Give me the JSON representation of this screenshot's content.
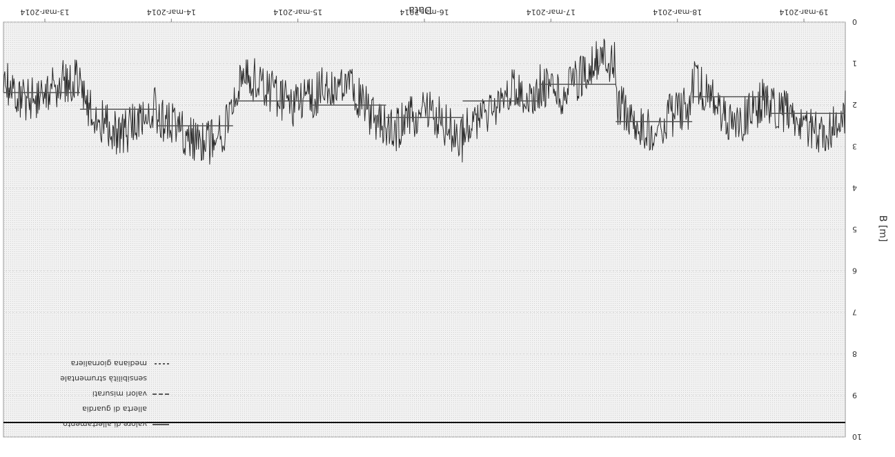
{
  "chart_data": {
    "type": "line",
    "orientation_note": "",
    "xlabel": "Data",
    "ylabel": "B [m]",
    "x_ticks": [
      "19-mar-2014",
      "18-mar-2014",
      "17-mar-2014",
      "16-mar-2014",
      "15-mar-2014",
      "14-mar-2014",
      "13-mar-2014"
    ],
    "y_ticks": [
      "0",
      "1",
      "2",
      "3",
      "4",
      "5",
      "6",
      "7",
      "8",
      "9",
      "10"
    ],
    "ylim": [
      0,
      10
    ],
    "grid": true,
    "legend_placement": "lower-left",
    "series": [
      {
        "name": "valore di allertamento",
        "style": "solid"
      },
      {
        "name": "allerta di guardia",
        "style": "none"
      },
      {
        "name": "valori misurati",
        "style": "dashed"
      },
      {
        "name": "sensibilità strumentale",
        "style": "none"
      },
      {
        "name": "mediana giornaliera",
        "style": "dash"
      }
    ],
    "alert_threshold": 9.65,
    "signal_mean_levels": [
      2.2,
      1.8,
      2.4,
      1.5,
      1.9,
      2.3,
      2.0,
      1.9,
      2.5,
      2.1,
      1.7
    ],
    "colors": {
      "signal": "#2a2a2a",
      "threshold": "#111111",
      "background": "#e9e9e9",
      "grid": "#c8c8c8"
    }
  }
}
